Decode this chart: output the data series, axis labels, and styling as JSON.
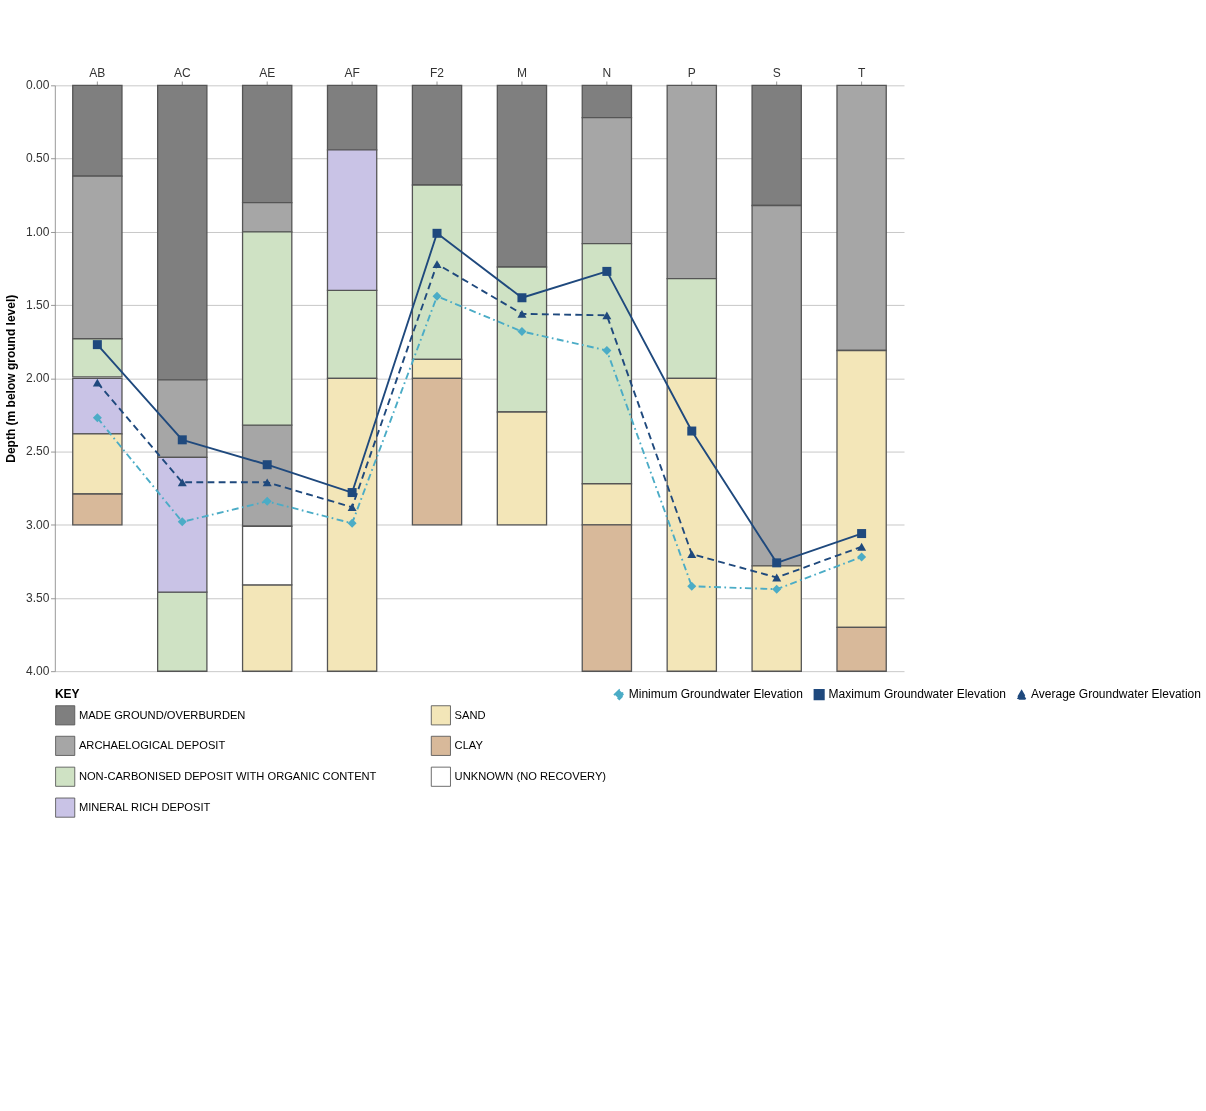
{
  "chart_data": {
    "type": "bar",
    "ylabel": "Depth (m below ground level)",
    "legend_title": "KEY",
    "categories": [
      "AB",
      "AC",
      "AE",
      "AF",
      "F2",
      "M",
      "N",
      "P",
      "S",
      "T"
    ],
    "ylim": [
      4,
      0
    ],
    "yticks": [
      {
        "value": 0,
        "label": "0.00"
      },
      {
        "value": 0.5,
        "label": "0.50"
      },
      {
        "value": 1,
        "label": "1.00"
      },
      {
        "value": 1.5,
        "label": "1.50"
      },
      {
        "value": 2,
        "label": "2.00"
      },
      {
        "value": 2.5,
        "label": "2.50"
      },
      {
        "value": 3,
        "label": "3.00"
      },
      {
        "value": 3.5,
        "label": "3.50"
      },
      {
        "value": 4,
        "label": "4.00"
      }
    ],
    "grid": "y",
    "legend": "bottom",
    "series": [
      {
        "name": "MADE GROUND/OVERBURDEN",
        "color": "#7f7f7f",
        "values": [
          0.62,
          2.01,
          0.8,
          0.44,
          0.68,
          1.24,
          0.22,
          null,
          0.82,
          null
        ],
        "base": [
          0,
          0,
          0,
          0,
          0,
          0,
          0,
          null,
          0,
          null
        ]
      },
      {
        "name": "ARCHAELOGICAL DEPOSIT",
        "color": "#a6a6a6",
        "values": [
          1.11,
          0.53,
          0.2,
          null,
          null,
          null,
          0.86,
          1.32,
          2.46,
          1.81
        ],
        "base": [
          0.62,
          2.01,
          0.8,
          null,
          null,
          null,
          0.22,
          0,
          0.82,
          0
        ]
      },
      {
        "color": "#a6a6a6",
        "values": [
          null,
          null,
          0.69,
          null,
          null,
          null,
          null,
          null,
          null,
          null
        ],
        "base": [
          null,
          null,
          2.32,
          null,
          null,
          null,
          null,
          null,
          null,
          null
        ]
      },
      {
        "name": "NON-CARBONISED DEPOSIT WITH ORGANIC CONTENT",
        "color": "#cfe2c4",
        "values": [
          0.26,
          0.54,
          1.32,
          0.6,
          1.19,
          0.99,
          1.64,
          0.68,
          null,
          null
        ],
        "base": [
          1.73,
          3.46,
          1.0,
          1.4,
          0.68,
          1.24,
          1.08,
          1.32,
          null,
          null
        ]
      },
      {
        "name": "MINERAL RICH DEPOSIT",
        "color": "#c9c3e6",
        "values": [
          0.38,
          0.92,
          null,
          0.96,
          null,
          null,
          null,
          null,
          null,
          null
        ],
        "base": [
          2.0,
          2.54,
          null,
          0.44,
          null,
          null,
          null,
          null,
          null,
          null
        ]
      },
      {
        "name": "SAND",
        "color": "#f3e6b8",
        "values": [
          0.41,
          null,
          0.59,
          2.0,
          0.13,
          0.77,
          0.28,
          2.0,
          0.72,
          1.89
        ],
        "base": [
          2.38,
          null,
          3.41,
          2.0,
          1.87,
          2.23,
          2.72,
          2.0,
          3.28,
          1.81
        ]
      },
      {
        "name": "CLAY",
        "color": "#d8b99a",
        "values": [
          0.21,
          null,
          null,
          null,
          1.0,
          null,
          1.0,
          null,
          null,
          0.3
        ],
        "base": [
          2.79,
          null,
          null,
          null,
          2.0,
          null,
          3.0,
          null,
          null,
          3.7
        ]
      },
      {
        "name": "UNKNOWN (NO RECOVERY)",
        "color": "#ffffff",
        "values": [
          null,
          null,
          0.4,
          null,
          null,
          null,
          null,
          null,
          null,
          null
        ],
        "base": [
          null,
          null,
          3.01,
          null,
          null,
          null,
          null,
          null,
          null,
          null
        ]
      },
      {
        "name": "Minimum Groundwater Elevation",
        "type": "line",
        "color": "#4bacc6",
        "marker": "diamond",
        "line_style": "dotted",
        "values": [
          2.27,
          2.98,
          2.84,
          2.99,
          1.44,
          1.68,
          1.81,
          3.42,
          3.44,
          3.22
        ]
      },
      {
        "name": "Maximum Groundwater Elevation",
        "type": "line",
        "color": "#1f497d",
        "marker": "square",
        "line_style": "solid",
        "values": [
          1.77,
          2.42,
          2.59,
          2.78,
          1.01,
          1.45,
          1.27,
          2.36,
          3.26,
          3.06
        ]
      },
      {
        "name": "Average Groundwater Elevation",
        "type": "line",
        "color": "#1f497d",
        "marker": "triangle",
        "line_style": "dashed",
        "values": [
          2.03,
          2.71,
          2.71,
          2.88,
          1.22,
          1.56,
          1.57,
          3.2,
          3.36,
          3.15
        ]
      }
    ]
  }
}
